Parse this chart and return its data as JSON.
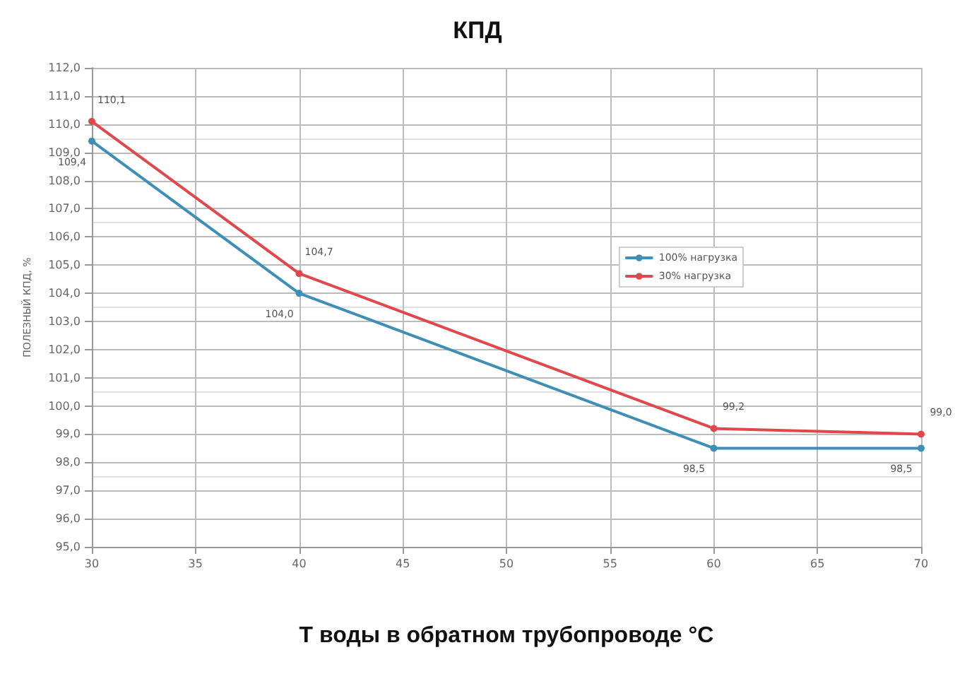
{
  "chart_data": {
    "type": "line",
    "title": "КПД",
    "xlabel": "T воды в обратном трубопроводе °C",
    "ylabel": "ПОЛЕЗНЫЙ КПД, %",
    "x": [
      30,
      40,
      60,
      70
    ],
    "series": [
      {
        "name": "100% нагрузка",
        "color": "#3e8fb8",
        "values": [
          109.4,
          104.0,
          98.5,
          98.5
        ],
        "value_labels": [
          "109,4",
          "104,0",
          "98,5",
          "98,5"
        ]
      },
      {
        "name": "30% нагрузка",
        "color": "#e0484c",
        "values": [
          110.1,
          104.7,
          99.2,
          99.0
        ],
        "value_labels": [
          "110,1",
          "104,7",
          "99,2",
          "99,0"
        ]
      }
    ],
    "xlim": [
      30,
      70
    ],
    "xticks": [
      30,
      35,
      40,
      45,
      50,
      55,
      60,
      65,
      70
    ],
    "ylim": [
      95,
      112
    ],
    "yticks": [
      {
        "value": 95,
        "label": "95,0"
      },
      {
        "value": 96,
        "label": "96,0"
      },
      {
        "value": 97,
        "label": "97,0"
      },
      {
        "value": 98,
        "label": "98,0"
      },
      {
        "value": 99,
        "label": "99,0"
      },
      {
        "value": 100,
        "label": "100,0"
      },
      {
        "value": 101,
        "label": "101,0"
      },
      {
        "value": 102,
        "label": "102,0"
      },
      {
        "value": 103,
        "label": "103,0"
      },
      {
        "value": 104,
        "label": "104,0"
      },
      {
        "value": 105,
        "label": "105,0"
      },
      {
        "value": 106,
        "label": "106,0"
      },
      {
        "value": 107,
        "label": "107,0"
      },
      {
        "value": 108,
        "label": "108,0"
      },
      {
        "value": 109,
        "label": "109,0"
      },
      {
        "value": 110,
        "label": "110,0"
      },
      {
        "value": 111,
        "label": "111,0"
      },
      {
        "value": 112,
        "label": "112,0"
      }
    ],
    "grid": true,
    "legend": "right",
    "marker": "circle",
    "line_style": "solid"
  }
}
